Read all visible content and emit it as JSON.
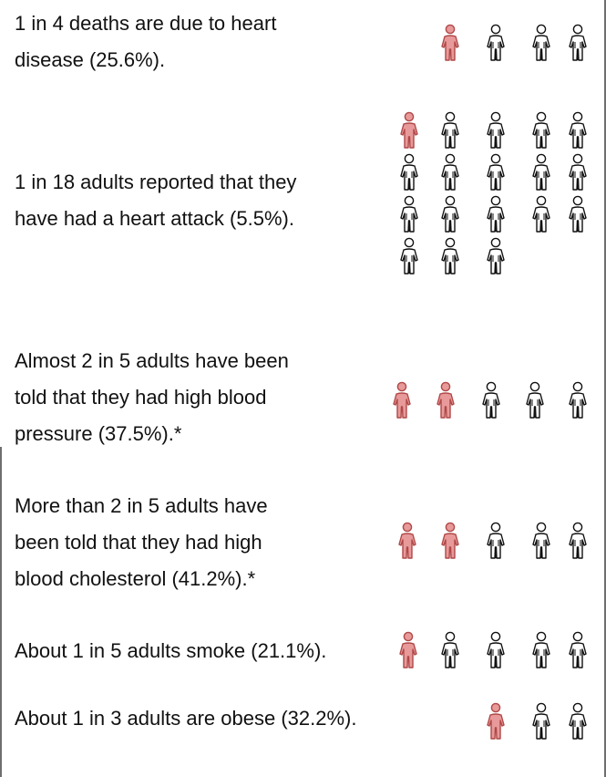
{
  "colors": {
    "highlight_fill": "#e89a9a",
    "highlight_stroke": "#b04848",
    "outline_stroke": "#111111"
  },
  "chart_data": {
    "type": "pictogram",
    "stats": [
      {
        "text": "1 in 4 deaths are due to  heart\ndisease (25.6%).",
        "highlighted": 1,
        "total": 4,
        "percent": 25.6
      },
      {
        "text": "1 in 18 adults reported that they\nhave had a heart attack (5.5%).",
        "highlighted": 1,
        "total": 18,
        "percent": 5.5
      },
      {
        "text": "Almost 2 in 5 adults have been\ntold  that they had high blood\npressure (37.5%).*",
        "highlighted": 2,
        "total": 5,
        "percent": 37.5
      },
      {
        "text": "More than 2 in 5 adults have\nbeen told that they had high\nblood cholesterol (41.2%).*",
        "highlighted": 2,
        "total": 5,
        "percent": 41.2
      },
      {
        "text": "About 1 in 5 adults smoke (21.1%).",
        "highlighted": 1,
        "total": 5,
        "percent": 21.1
      },
      {
        "text": "About 1 in 3 adults are obese (32.2%).",
        "highlighted": 1,
        "total": 3,
        "percent": 32.2
      }
    ]
  }
}
